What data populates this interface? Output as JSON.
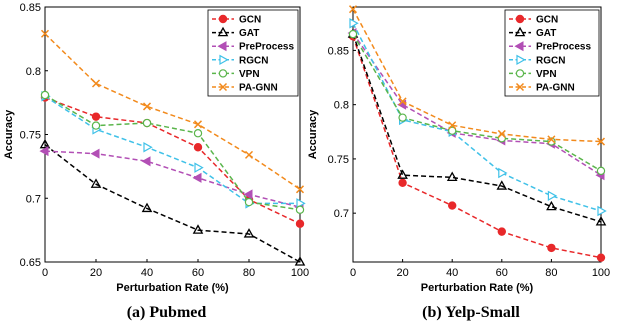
{
  "chart_data": [
    {
      "type": "line",
      "caption": "(a) Pubmed",
      "xlabel": "Perturbation Rate (%)",
      "ylabel": "Accuracy",
      "x": [
        0,
        20,
        40,
        60,
        80,
        100
      ],
      "xlim": [
        0,
        100
      ],
      "ylim": [
        0.65,
        0.85
      ],
      "xticks": [
        "0",
        "20",
        "40",
        "60",
        "80",
        "100"
      ],
      "yticks": [
        "0.65",
        "0.7",
        "0.75",
        "0.8",
        "0.85"
      ],
      "legend_position": "top-right",
      "grid": false,
      "series": [
        {
          "name": "GCN",
          "color": "#e8282a",
          "marker": "circle",
          "values": [
            0.779,
            0.764,
            0.759,
            0.74,
            0.699,
            0.68
          ]
        },
        {
          "name": "GAT",
          "color": "#000000",
          "marker": "triangle-up",
          "values": [
            0.742,
            0.711,
            0.692,
            0.675,
            0.672,
            0.65
          ]
        },
        {
          "name": "PreProcess",
          "color": "#b24fb5",
          "marker": "triangle-left",
          "values": [
            0.737,
            0.735,
            0.729,
            0.716,
            0.703,
            0.693
          ]
        },
        {
          "name": "RGCN",
          "color": "#3fc1e8",
          "marker": "triangle-right",
          "values": [
            0.78,
            0.754,
            0.74,
            0.724,
            0.696,
            0.696
          ]
        },
        {
          "name": "VPN",
          "color": "#5ab54b",
          "marker": "circle",
          "values": [
            0.781,
            0.757,
            0.759,
            0.751,
            0.697,
            0.691
          ]
        },
        {
          "name": "PA-GNN",
          "color": "#f28a1c",
          "marker": "cross",
          "values": [
            0.829,
            0.79,
            0.772,
            0.758,
            0.734,
            0.707
          ]
        }
      ]
    },
    {
      "type": "line",
      "caption": "(b) Yelp-Small",
      "xlabel": "Perturbation Rate (%)",
      "ylabel": "Accuracy",
      "x": [
        0,
        20,
        40,
        60,
        80,
        100
      ],
      "xlim": [
        0,
        100
      ],
      "ylim": [
        0.655,
        0.89
      ],
      "xticks": [
        "0",
        "20",
        "40",
        "60",
        "80",
        "100"
      ],
      "yticks": [
        "0.7",
        "0.75",
        "0.8",
        "0.85"
      ],
      "legend_position": "top-right",
      "grid": false,
      "series": [
        {
          "name": "GCN",
          "color": "#e8282a",
          "marker": "circle",
          "values": [
            0.863,
            0.728,
            0.707,
            0.683,
            0.668,
            0.659
          ]
        },
        {
          "name": "GAT",
          "color": "#000000",
          "marker": "triangle-up",
          "values": [
            0.865,
            0.735,
            0.733,
            0.725,
            0.706,
            0.692
          ]
        },
        {
          "name": "PreProcess",
          "color": "#b24fb5",
          "marker": "triangle-left",
          "values": [
            0.866,
            0.8,
            0.774,
            0.767,
            0.764,
            0.735
          ]
        },
        {
          "name": "RGCN",
          "color": "#3fc1e8",
          "marker": "triangle-right",
          "values": [
            0.875,
            0.786,
            0.775,
            0.737,
            0.716,
            0.702
          ]
        },
        {
          "name": "VPN",
          "color": "#5ab54b",
          "marker": "circle",
          "values": [
            0.865,
            0.788,
            0.776,
            0.769,
            0.766,
            0.739
          ]
        },
        {
          "name": "PA-GNN",
          "color": "#f28a1c",
          "marker": "cross",
          "values": [
            0.888,
            0.803,
            0.781,
            0.773,
            0.768,
            0.766
          ]
        }
      ]
    }
  ]
}
